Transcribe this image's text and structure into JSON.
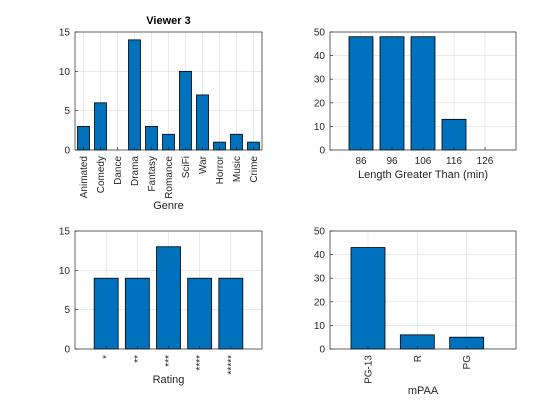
{
  "chart_data": [
    {
      "type": "bar",
      "title": "Viewer 3",
      "categories": [
        "Animated",
        "Comedy",
        "Dance",
        "Drama",
        "Fantasy",
        "Romance",
        "SciFi",
        "War",
        "Horror",
        "Music",
        "Crime"
      ],
      "values": [
        3,
        6,
        0,
        14,
        3,
        2,
        10,
        7,
        1,
        2,
        1
      ],
      "xlabel": "Genre",
      "ylabel": "",
      "ylim": [
        0,
        15
      ],
      "yticks": [
        "0",
        "5",
        "10",
        "15"
      ],
      "grid": true
    },
    {
      "type": "bar",
      "title": "",
      "categories": [
        "86",
        "96",
        "106",
        "116",
        "126"
      ],
      "values": [
        48,
        48,
        48,
        13,
        0
      ],
      "xlabel": "Length Greater Than (min)",
      "ylabel": "",
      "ylim": [
        0,
        50
      ],
      "yticks": [
        "0",
        "10",
        "20",
        "30",
        "40",
        "50"
      ],
      "grid": true
    },
    {
      "type": "bar",
      "title": "",
      "categories": [
        "*",
        "**",
        "***",
        "****",
        "*****"
      ],
      "values": [
        9,
        9,
        13,
        9,
        9
      ],
      "xlabel": "Rating",
      "ylabel": "",
      "ylim": [
        0,
        15
      ],
      "yticks": [
        "0",
        "5",
        "10",
        "15"
      ],
      "grid": true
    },
    {
      "type": "bar",
      "title": "",
      "categories": [
        "PG-13",
        "R",
        "PG"
      ],
      "values": [
        43,
        6,
        5
      ],
      "xlabel": "mPAA",
      "ylabel": "",
      "ylim": [
        0,
        50
      ],
      "yticks": [
        "0",
        "10",
        "20",
        "30",
        "40",
        "50"
      ],
      "grid": true
    }
  ],
  "colors": {
    "bar": "#0072BD",
    "grid": "#dcdcdc",
    "frame": "#262626"
  }
}
